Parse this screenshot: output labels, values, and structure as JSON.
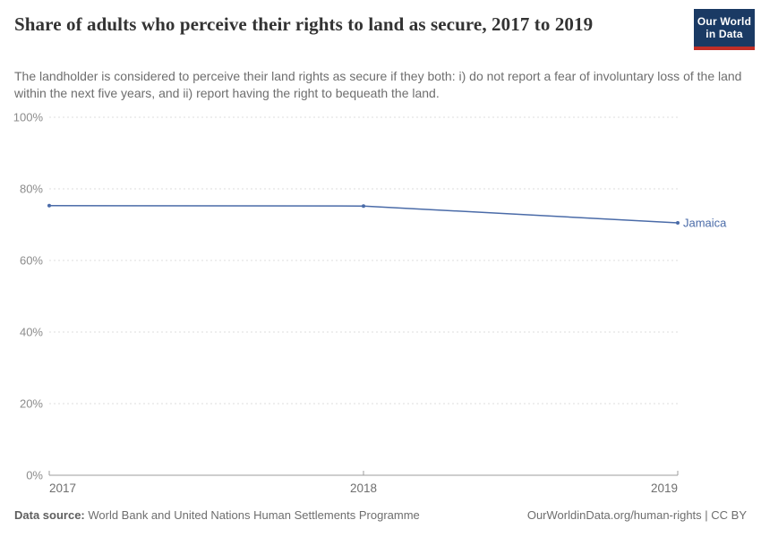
{
  "header": {
    "title": "Share of adults who perceive their rights to land as secure, 2017 to 2019",
    "subtitle": "The landholder is considered to perceive their land rights as secure if they both: i) do not report a fear of involuntary loss of the land within the next five years, and ii) report having the right to bequeath the land.",
    "logo": {
      "line1": "Our World",
      "line2": "in Data"
    }
  },
  "chart_data": {
    "type": "line",
    "title": "Share of adults who perceive their rights to land as secure, 2017 to 2019",
    "x": [
      2017,
      2018,
      2019
    ],
    "series": [
      {
        "name": "Jamaica",
        "values": [
          75.3,
          75.2,
          70.5
        ],
        "color": "#4a6ba8"
      }
    ],
    "xlim": [
      2017,
      2019
    ],
    "ylim": [
      0,
      100
    ],
    "yticks": [
      0,
      20,
      40,
      60,
      80,
      100
    ],
    "ytick_suffix": "%",
    "xticks": [
      2017,
      2018,
      2019
    ],
    "grid": true,
    "legend_position": "end-of-line"
  },
  "footer": {
    "datasource_label": "Data source:",
    "datasource_value": " World Bank and United Nations Human Settlements Programme",
    "link": "OurWorldinData.org/human-rights | CC BY"
  },
  "colors": {
    "line": "#4a6ba8",
    "grid": "#dcdcdc",
    "axis": "#9e9e9e",
    "ytick_label": "#8c8c8c",
    "xtick_label": "#6f6f6f",
    "logo_bg": "#1a3a64",
    "logo_stripe": "#c12e27"
  }
}
